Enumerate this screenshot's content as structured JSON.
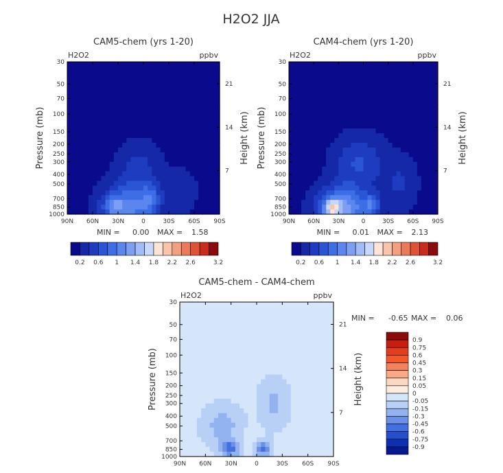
{
  "figure_title": "H2O2 JJA",
  "chart_data": [
    {
      "type": "heatmap",
      "title": "CAM5-chem (yrs 1-20)",
      "variable": "H2O2",
      "units": "ppbv",
      "ylabel": "Pressure (mb)",
      "y2label": "Height (km)",
      "x_ticks": [
        "90N",
        "60N",
        "30N",
        "0",
        "30S",
        "60S",
        "90S"
      ],
      "y_ticks": [
        30,
        50,
        70,
        100,
        150,
        200,
        250,
        300,
        400,
        500,
        700,
        850,
        1000
      ],
      "y_scale": "log",
      "ylim": [
        1000,
        30
      ],
      "height_ticks": [
        21,
        14,
        7
      ],
      "stats": {
        "min_label": "MIN =",
        "min": "0.00",
        "max_label": "MAX =",
        "max": "1.58"
      },
      "levels": [
        0.2,
        0.4,
        0.6,
        0.8,
        1,
        1.2,
        1.4,
        1.6,
        1.8,
        2,
        2.2,
        2.4,
        2.6,
        2.8,
        3,
        3.2
      ],
      "colorbar_labels": [
        "0.2",
        "0.6",
        "1",
        "1.4",
        "1.8",
        "2.2",
        "2.6",
        "3.2"
      ],
      "colorbar_label_levels": [
        0.2,
        0.6,
        1,
        1.4,
        1.8,
        2.2,
        2.6,
        3.2
      ]
    },
    {
      "type": "heatmap",
      "title": "CAM4-chem (yrs 1-20)",
      "variable": "H2O2",
      "units": "ppbv",
      "ylabel": "Pressure (mb)",
      "y2label": "Height (km)",
      "x_ticks": [
        "90N",
        "60N",
        "30N",
        "0",
        "30S",
        "60S",
        "90S"
      ],
      "y_ticks": [
        30,
        50,
        70,
        100,
        150,
        200,
        250,
        300,
        400,
        500,
        700,
        850,
        1000
      ],
      "y_scale": "log",
      "ylim": [
        1000,
        30
      ],
      "height_ticks": [
        21,
        14,
        7
      ],
      "stats": {
        "min_label": "MIN =",
        "min": "0.01",
        "max_label": "MAX =",
        "max": "2.13"
      },
      "levels": [
        0.2,
        0.4,
        0.6,
        0.8,
        1,
        1.2,
        1.4,
        1.6,
        1.8,
        2,
        2.2,
        2.4,
        2.6,
        2.8,
        3,
        3.2
      ],
      "colorbar_labels": [
        "0.2",
        "0.6",
        "1",
        "1.4",
        "1.8",
        "2.2",
        "2.6",
        "3.2"
      ],
      "colorbar_label_levels": [
        0.2,
        0.6,
        1,
        1.4,
        1.8,
        2.2,
        2.6,
        3.2
      ]
    },
    {
      "type": "heatmap",
      "title": "CAM5-chem - CAM4-chem",
      "variable": "H2O2",
      "units": "ppbv",
      "ylabel": "Pressure (mb)",
      "y2label": "Height (km)",
      "x_ticks": [
        "90N",
        "60N",
        "30N",
        "0",
        "30S",
        "60S",
        "90S"
      ],
      "y_ticks": [
        30,
        50,
        70,
        100,
        150,
        200,
        250,
        300,
        400,
        500,
        700,
        850,
        1000
      ],
      "y_scale": "log",
      "ylim": [
        1000,
        30
      ],
      "height_ticks": [
        21,
        14,
        7
      ],
      "stats": {
        "min_label": "MIN =",
        "min": "-0.65",
        "max_label": "MAX =",
        "max": "0.06"
      },
      "colorbar_labels": [
        "0.9",
        "0.75",
        "0.6",
        "0.45",
        "0.3",
        "0.15",
        "0.05",
        "0",
        "-0.05",
        "-0.15",
        "-0.3",
        "-0.45",
        "-0.6",
        "-0.75",
        "-0.9"
      ]
    }
  ],
  "colors": {
    "seq": [
      "#0a0a8c",
      "#1428a8",
      "#1e3cc0",
      "#2a56d6",
      "#3e6ee6",
      "#5a86ee",
      "#7c9ff2",
      "#a2bcf6",
      "#c8d8fa",
      "#fde4d6",
      "#f8c4ac",
      "#f2a080",
      "#ea7a58",
      "#de5236",
      "#c82c1a",
      "#8c0a0a"
    ],
    "div": [
      "#8c0a0a",
      "#c81e10",
      "#e23e1c",
      "#f05a2a",
      "#f6825a",
      "#f9a888",
      "#fcd8c4",
      "#fdece0",
      "#d6e6fa",
      "#b8d0f6",
      "#92b2f0",
      "#6a90e8",
      "#4270e0",
      "#2450d0",
      "#0e30b0",
      "#061890"
    ]
  }
}
